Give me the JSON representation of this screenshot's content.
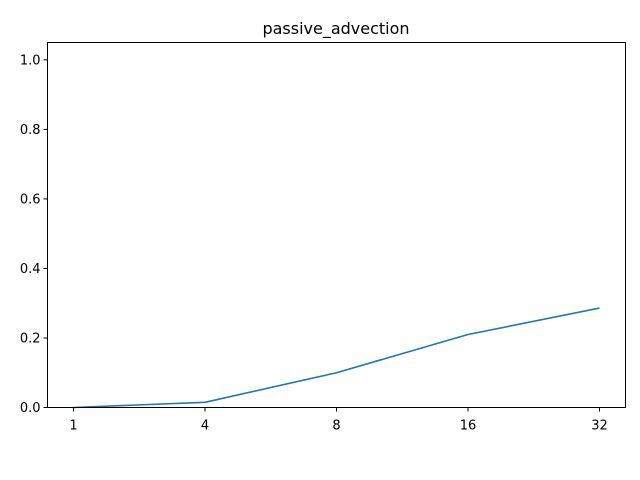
{
  "chart_data": {
    "type": "line",
    "title": "passive_advection",
    "xlabel": "",
    "ylabel": "",
    "categories": [
      "1",
      "4",
      "8",
      "16",
      "32"
    ],
    "series": [
      {
        "values": [
          0.0,
          0.015,
          0.1,
          0.21,
          0.286
        ],
        "color": "#1f77b4"
      }
    ],
    "ylim": [
      0.0,
      1.05
    ],
    "yticks": [
      "0.0",
      "0.2",
      "0.4",
      "0.6",
      "0.8",
      "1.0"
    ],
    "grid": false,
    "legend": "none"
  }
}
